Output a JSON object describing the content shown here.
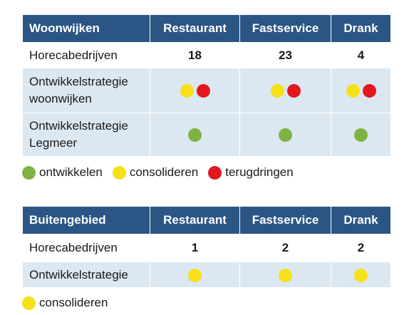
{
  "colors": {
    "header_bg": "#2b5584",
    "row_alt_bg": "#dce8f1",
    "ontwikkelen": "#7cb342",
    "consolideren": "#f7e01a",
    "terugdringen": "#e3171d"
  },
  "table1": {
    "headers": [
      "Woonwijken",
      "Restaurant",
      "Fastservice",
      "Drank"
    ],
    "rows": [
      {
        "label": "Horecabedrijven",
        "values": [
          "18",
          "23",
          "4"
        ]
      },
      {
        "label": "Ontwikkelstrategie woonwijken",
        "dots": [
          [
            "consolideren",
            "terugdringen"
          ],
          [
            "consolideren",
            "terugdringen"
          ],
          [
            "consolideren",
            "terugdringen"
          ]
        ]
      },
      {
        "label": "Ontwikkelstrategie Legmeer",
        "dots": [
          [
            "ontwikkelen"
          ],
          [
            "ontwikkelen"
          ],
          [
            "ontwikkelen"
          ]
        ]
      }
    ]
  },
  "legend1": [
    {
      "color_key": "ontwikkelen",
      "label": "ontwikkelen"
    },
    {
      "color_key": "consolideren",
      "label": "consolideren"
    },
    {
      "color_key": "terugdringen",
      "label": "terugdringen"
    }
  ],
  "table2": {
    "headers": [
      "Buitengebied",
      "Restaurant",
      "Fastservice",
      "Drank"
    ],
    "rows": [
      {
        "label": "Horecabedrijven",
        "values": [
          "1",
          "2",
          "2"
        ]
      },
      {
        "label": "Ontwikkelstrategie",
        "dots": [
          [
            "consolideren"
          ],
          [
            "consolideren"
          ],
          [
            "consolideren"
          ]
        ]
      }
    ]
  },
  "legend2": [
    {
      "color_key": "consolideren",
      "label": "consolideren"
    }
  ]
}
